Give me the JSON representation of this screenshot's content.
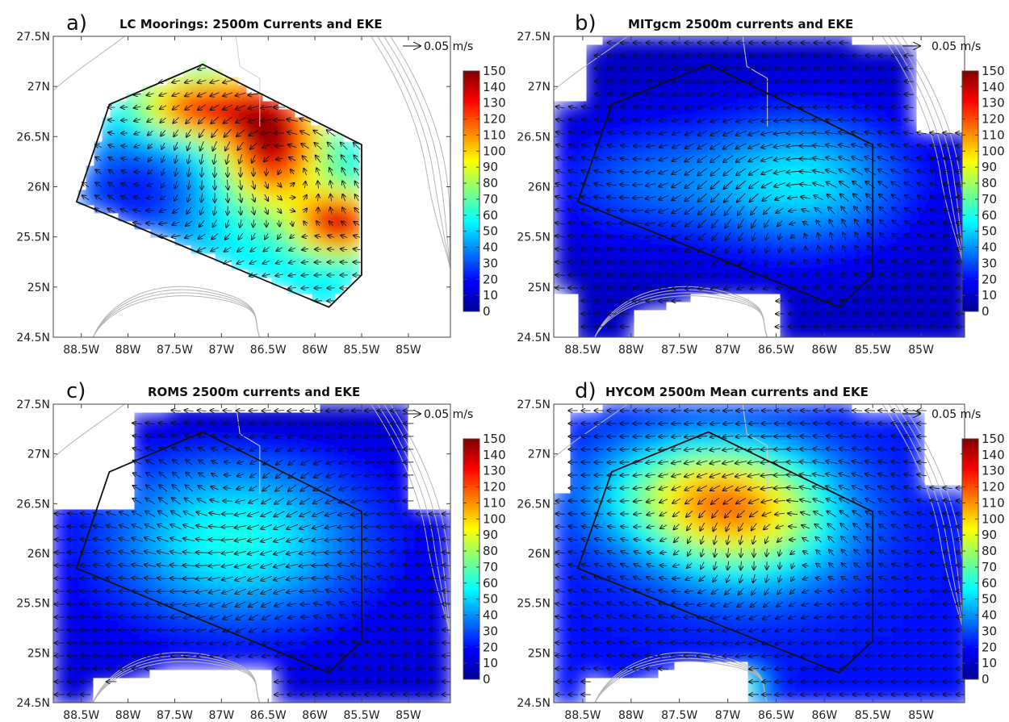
{
  "figure": {
    "axis": {
      "lon_ticks": [
        "88.5W",
        "88W",
        "87.5W",
        "87W",
        "86.5W",
        "86W",
        "85.5W",
        "85W"
      ],
      "lon_values": [
        -88.5,
        -88,
        -87.5,
        -87,
        -86.5,
        -86,
        -85.5,
        -85
      ],
      "lat_ticks": [
        "24.5N",
        "25N",
        "25.5N",
        "26N",
        "26.5N",
        "27N",
        "27.5N"
      ],
      "lat_values": [
        24.5,
        25,
        25.5,
        26,
        26.5,
        27,
        27.5
      ],
      "lon_range": [
        -88.8,
        -84.55
      ],
      "lat_range": [
        24.5,
        27.5
      ]
    },
    "colorbar": {
      "ticks": [
        "150",
        "140",
        "130",
        "120",
        "110",
        "100",
        "90",
        "80",
        "70",
        "60",
        "50",
        "40",
        "30",
        "20",
        "10",
        "0"
      ],
      "range": [
        0,
        150
      ],
      "colormap": "jet"
    },
    "scale_arrow": {
      "label": "0.05 m/s"
    },
    "mooring_polygon": [
      [
        -88.2,
        26.82
      ],
      [
        -87.2,
        27.22
      ],
      [
        -85.5,
        26.42
      ],
      [
        -85.5,
        25.12
      ],
      [
        -85.85,
        24.8
      ],
      [
        -88.55,
        25.85
      ]
    ],
    "panels": [
      {
        "id": "a",
        "label": "a)",
        "title": "LC Moorings: 2500m Currents and EKE",
        "type": "moorings"
      },
      {
        "id": "b",
        "label": "b)",
        "title": "MITgcm 2500m currents and EKE",
        "type": "mitgcm"
      },
      {
        "id": "c",
        "label": "c)",
        "title": "ROMS 2500m currents and EKE",
        "type": "roms"
      },
      {
        "id": "d",
        "label": "d)",
        "title": "HYCOM 2500m Mean currents and EKE",
        "type": "hycom"
      }
    ]
  }
}
